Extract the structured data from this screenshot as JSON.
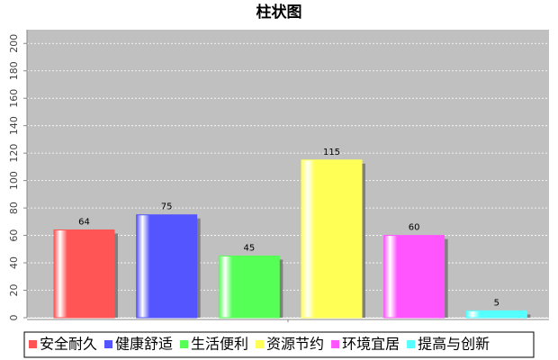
{
  "chart_data": {
    "type": "bar",
    "title": "柱状图",
    "categories": [
      null
    ],
    "series": [
      {
        "name": "安全耐久",
        "color": "#ff5555",
        "values": [
          64
        ]
      },
      {
        "name": "健康舒适",
        "color": "#5555ff",
        "values": [
          75
        ]
      },
      {
        "name": "生活便利",
        "color": "#55ff55",
        "values": [
          45
        ]
      },
      {
        "name": "资源节约",
        "color": "#ffff55",
        "values": [
          115
        ]
      },
      {
        "name": "环境宜居",
        "color": "#ff55ff",
        "values": [
          60
        ]
      },
      {
        "name": "提高与创新",
        "color": "#55ffff",
        "values": [
          5
        ]
      }
    ],
    "ylim": [
      0,
      210
    ],
    "yticks": [
      0,
      20,
      40,
      60,
      80,
      100,
      120,
      140,
      160,
      180,
      200
    ],
    "grid": true,
    "legend": "bottom"
  }
}
